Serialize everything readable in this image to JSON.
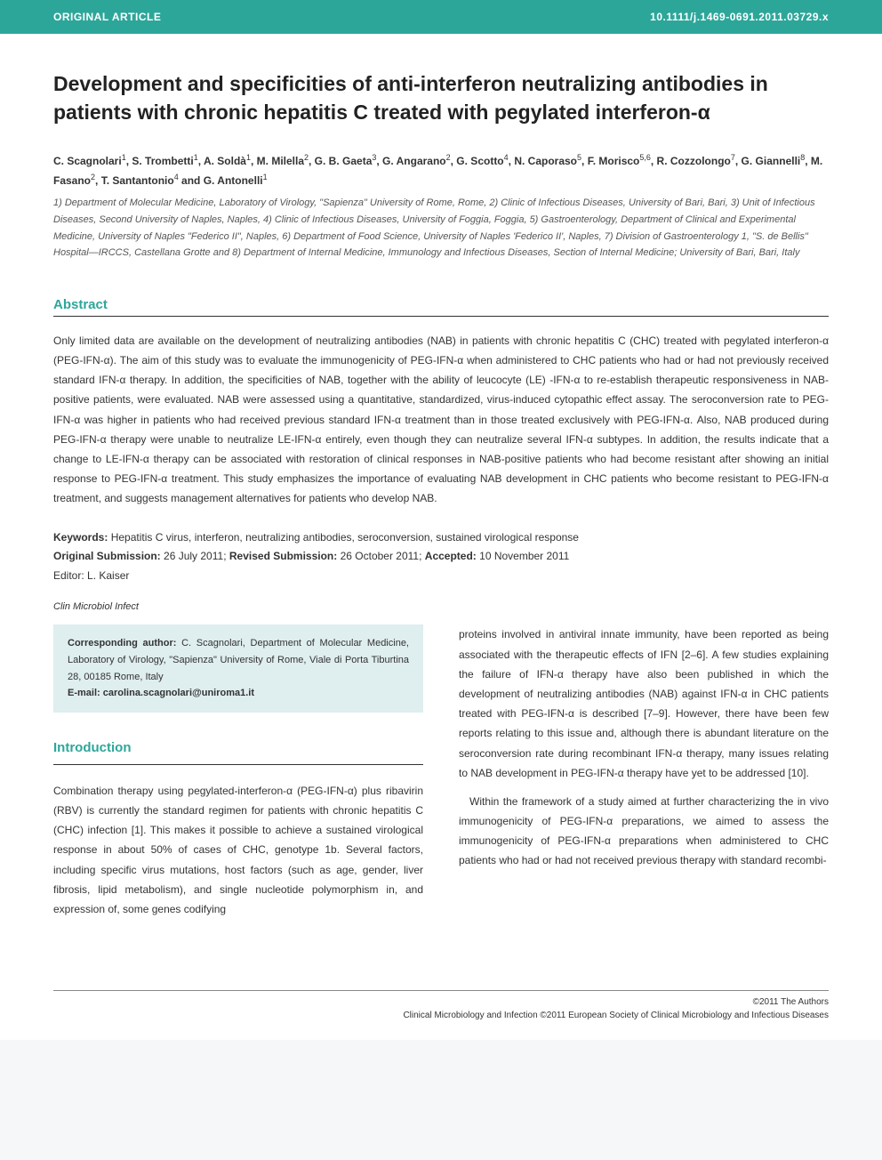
{
  "colors": {
    "teal": "#2da69a",
    "page_bg": "#ffffff",
    "outer_bg": "#f5f7f8",
    "corresponding_bg": "#dfeeef",
    "text_primary": "#333333",
    "text_muted": "#555555",
    "rule": "#333333"
  },
  "typography": {
    "base_family": "Arial, Helvetica, sans-serif",
    "title_fontsize": 23,
    "section_heading_fontsize": 15,
    "body_fontsize": 12,
    "affiliation_fontsize": 11,
    "footer_fontsize": 10
  },
  "banner": {
    "left": "ORIGINAL ARTICLE",
    "right": "10.1111/j.1469-0691.2011.03729.x"
  },
  "title": "Development and specificities of anti-interferon neutralizing antibodies in patients with chronic hepatitis C treated with pegylated interferon-α",
  "authors_html": "C. Scagnolari<sup>1</sup>, S. Trombetti<sup>1</sup>, A. Soldà<sup>1</sup>, M. Milella<sup>2</sup>, G. B. Gaeta<sup>3</sup>, G. Angarano<sup>2</sup>, G. Scotto<sup>4</sup>, N. Caporaso<sup>5</sup>, F. Morisco<sup>5,6</sup>, R. Cozzolongo<sup>7</sup>, G. Giannelli<sup>8</sup>, M. Fasano<sup>2</sup>, T. Santantonio<sup>4</sup> and G. Antonelli<sup>1</sup>",
  "affiliations": "1) Department of Molecular Medicine, Laboratory of Virology, \"Sapienza\" University of Rome, Rome, 2) Clinic of Infectious Diseases, University of Bari, Bari, 3) Unit of Infectious Diseases, Second University of Naples, Naples, 4) Clinic of Infectious Diseases, University of Foggia, Foggia, 5) Gastroenterology, Department of Clinical and Experimental Medicine, University of Naples \"Federico II\", Naples, 6) Department of Food Science, University of Naples 'Federico II', Naples, 7) Division of Gastroenterology 1, \"S. de Bellis\" Hospital—IRCCS, Castellana Grotte and 8) Department of Internal Medicine, Immunology and Infectious Diseases, Section of Internal Medicine; University of Bari, Bari, Italy",
  "abstract": {
    "heading": "Abstract",
    "text": "Only limited data are available on the development of neutralizing antibodies (NAB) in patients with chronic hepatitis C (CHC) treated with pegylated interferon-α (PEG-IFN-α). The aim of this study was to evaluate the immunogenicity of PEG-IFN-α when administered to CHC patients who had or had not previously received standard IFN-α therapy. In addition, the specificities of NAB, together with the ability of leucocyte (LE) -IFN-α to re-establish therapeutic responsiveness in NAB-positive patients, were evaluated. NAB were assessed using a quantitative, standardized, virus-induced cytopathic effect assay. The seroconversion rate to PEG-IFN-α was higher in patients who had received previous standard IFN-α treatment than in those treated exclusively with PEG-IFN-α. Also, NAB produced during PEG-IFN-α therapy were unable to neutralize LE-IFN-α entirely, even though they can neutralize several IFN-α subtypes. In addition, the results indicate that a change to LE-IFN-α therapy can be associated with restoration of clinical responses in NAB-positive patients who had become resistant after showing an initial response to PEG-IFN-α treatment. This study emphasizes the importance of evaluating NAB development in CHC patients who become resistant to PEG-IFN-α treatment, and suggests management alternatives for patients who develop NAB."
  },
  "keywords": {
    "label": "Keywords:",
    "text": "Hepatitis C virus, interferon, neutralizing antibodies, seroconversion, sustained virological response"
  },
  "submission": {
    "original_label": "Original Submission:",
    "original_date": "26 July 2011;",
    "revised_label": "Revised Submission:",
    "revised_date": "26 October 2011;",
    "accepted_label": "Accepted:",
    "accepted_date": "10 November 2011"
  },
  "editor": {
    "label": "Editor:",
    "name": "L. Kaiser"
  },
  "journal": "Clin Microbiol Infect",
  "corresponding": {
    "label": "Corresponding author:",
    "text": "C. Scagnolari, Department of Molecular Medicine, Laboratory of Virology, \"Sapienza\" University of Rome, Viale di Porta Tiburtina 28, 00185 Rome, Italy",
    "email_label": "E-mail:",
    "email": "carolina.scagnolari@uniroma1.it"
  },
  "introduction": {
    "heading": "Introduction",
    "col_left": "Combination therapy using pegylated-interferon-α (PEG-IFN-α) plus ribavirin (RBV) is currently the standard regimen for patients with chronic hepatitis C (CHC) infection [1]. This makes it possible to achieve a sustained virological response in about 50% of cases of CHC, genotype 1b. Several factors, including specific virus mutations, host factors (such as age, gender, liver fibrosis, lipid metabolism), and single nucleotide polymorphism in, and expression of, some genes codifying",
    "col_right_p1": "proteins involved in antiviral innate immunity, have been reported as being associated with the therapeutic effects of IFN [2–6]. A few studies explaining the failure of IFN-α therapy have also been published in which the development of neutralizing antibodies (NAB) against IFN-α in CHC patients treated with PEG-IFN-α is described [7–9]. However, there have been few reports relating to this issue and, although there is abundant literature on the seroconversion rate during recombinant IFN-α therapy, many issues relating to NAB development in PEG-IFN-α therapy have yet to be addressed [10].",
    "col_right_p2": "Within the framework of a study aimed at further characterizing the in vivo immunogenicity of PEG-IFN-α preparations, we aimed to assess the immunogenicity of PEG-IFN-α preparations when administered to CHC patients who had or had not received previous therapy with standard recombi-"
  },
  "footer": {
    "line1": "©2011 The Authors",
    "line2": "Clinical Microbiology and Infection ©2011 European Society of Clinical Microbiology and Infectious Diseases"
  }
}
